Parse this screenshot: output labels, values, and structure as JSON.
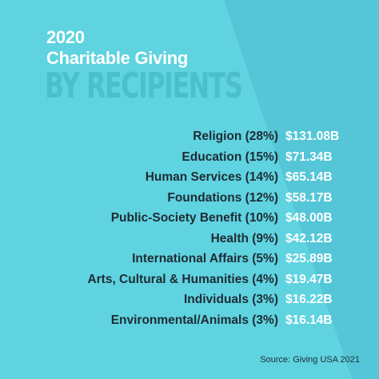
{
  "header": {
    "year": "2020",
    "title": "Charitable Giving",
    "subtitle": "BY RECIPIENTS"
  },
  "colors": {
    "background_light": "#5fd3e0",
    "background_dark": "#54c6d8",
    "label_text": "#1f2b33",
    "value_text": "#ffffff"
  },
  "chart_data": {
    "type": "table",
    "title": "2020 Charitable Giving",
    "subtitle": "BY RECIPIENTS",
    "rows": [
      {
        "label": "Religion (28%)",
        "value": "$131.08B"
      },
      {
        "label": "Education (15%)",
        "value": "$71.34B"
      },
      {
        "label": "Human Services (14%)",
        "value": "$65.14B"
      },
      {
        "label": "Foundations (12%)",
        "value": "$58.17B"
      },
      {
        "label": "Public-Society Benefit (10%)",
        "value": "$48.00B"
      },
      {
        "label": "Health (9%)",
        "value": "$42.12B"
      },
      {
        "label": "International Affairs (5%)",
        "value": "$25.89B"
      },
      {
        "label": "Arts, Cultural & Humanities (4%)",
        "value": "$19.47B"
      },
      {
        "label": "Individuals (3%)",
        "value": "$16.22B"
      },
      {
        "label": "Environmental/Animals (3%)",
        "value": "$16.14B"
      }
    ]
  },
  "footer": {
    "source": "Source: Giving USA 2021"
  }
}
